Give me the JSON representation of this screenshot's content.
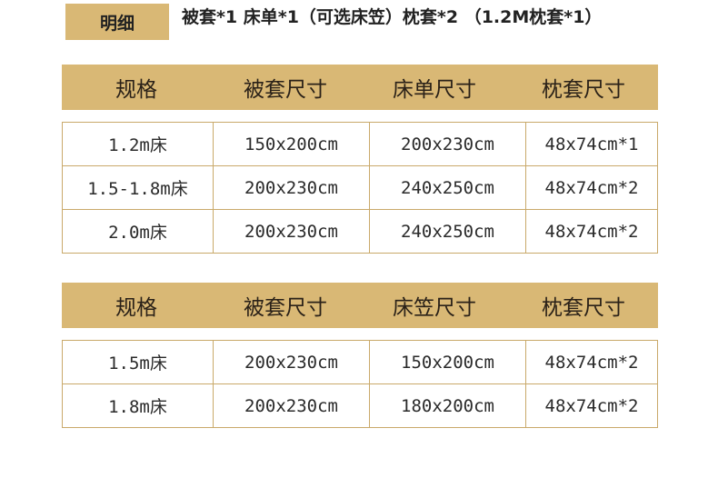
{
  "header": {
    "tag": "明细",
    "title": "被套*1 床单*1（可选床笠）枕套*2 （1.2M枕套*1）"
  },
  "table1": {
    "headers": [
      "规格",
      "被套尺寸",
      "床单尺寸",
      "枕套尺寸"
    ],
    "rows": [
      [
        "1.2m床",
        "150x200cm",
        "200x230cm",
        "48x74cm*1"
      ],
      [
        "1.5-1.8m床",
        "200x230cm",
        "240x250cm",
        "48x74cm*2"
      ],
      [
        "2.0m床",
        "200x230cm",
        "240x250cm",
        "48x74cm*2"
      ]
    ]
  },
  "table2": {
    "headers": [
      "规格",
      "被套尺寸",
      "床笠尺寸",
      "枕套尺寸"
    ],
    "rows": [
      [
        "1.5m床",
        "200x230cm",
        "150x200cm",
        "48x74cm*2"
      ],
      [
        "1.8m床",
        "200x230cm",
        "180x200cm",
        "48x74cm*2"
      ]
    ]
  },
  "colors": {
    "accent": "#d9b875",
    "border": "#c9a96a"
  }
}
